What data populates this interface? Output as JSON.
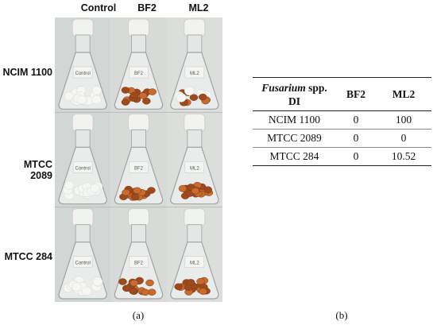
{
  "panel_a": {
    "column_headers": [
      "Control",
      "BF2",
      "ML2"
    ],
    "row_headers": [
      "NCIM 1100",
      "MTCC 2089",
      "MTCC 284"
    ],
    "flask_labels": [
      [
        "Control",
        "BF2",
        "ML2"
      ],
      [
        "Control",
        "BF2",
        "ML2"
      ],
      [
        "Control",
        "BF2",
        "ML2"
      ]
    ],
    "caption": "(a)"
  },
  "panel_b": {
    "header": {
      "species_italic": "Fusarium",
      "species_rest": " spp.",
      "di": "DI",
      "col2": "BF2",
      "col3": "ML2"
    },
    "rows": [
      {
        "name": "NCIM 1100",
        "bf2": "0",
        "ml2": "100"
      },
      {
        "name": "MTCC 2089",
        "bf2": "0",
        "ml2": "0"
      },
      {
        "name": "MTCC 284",
        "bf2": "0",
        "ml2": "10.52"
      }
    ],
    "caption": "(b)"
  },
  "colors": {
    "seed": "#c96a2e",
    "seed_dark": "#9e4a1c",
    "cotton": "#f2f2f0",
    "glass_bg": "#d5d8d6"
  }
}
